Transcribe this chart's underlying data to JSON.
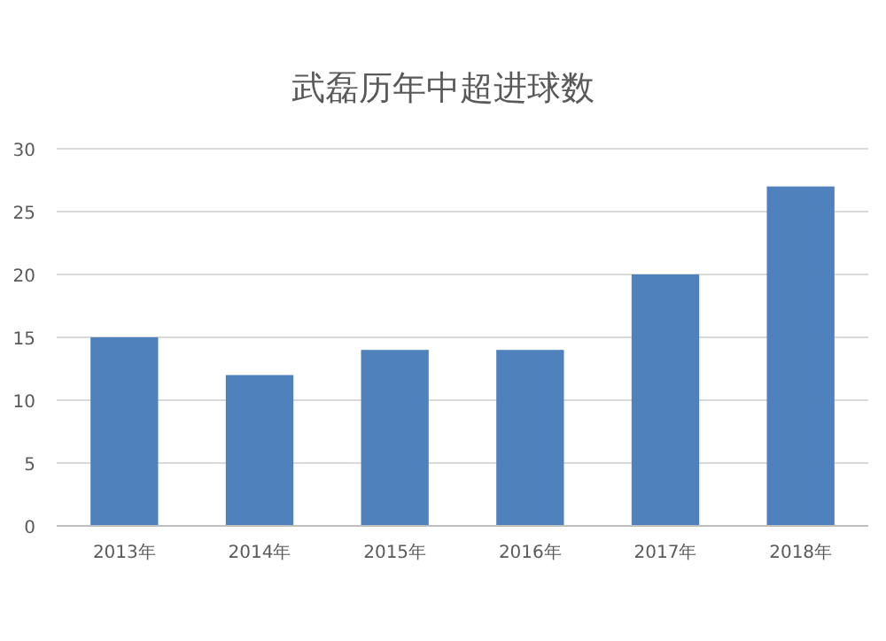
{
  "chart_data": {
    "type": "bar",
    "title": "武磊历年中超进球数",
    "categories": [
      "2013年",
      "2014年",
      "2015年",
      "2016年",
      "2017年",
      "2018年"
    ],
    "values": [
      15,
      12,
      14,
      14,
      20,
      27
    ],
    "color": "#4f81bd",
    "ylim": [
      0,
      30
    ],
    "yticks": [
      0,
      5,
      10,
      15,
      20,
      25,
      30
    ],
    "grid": "y"
  }
}
